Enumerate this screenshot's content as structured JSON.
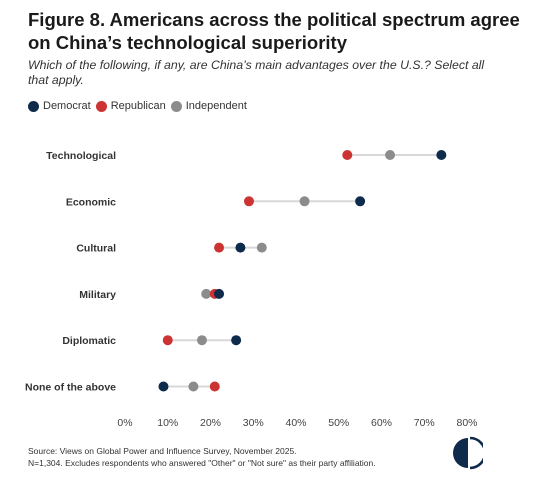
{
  "header": {
    "title": "Figure 8. Americans across the political spectrum agree on China’s technological superiority",
    "subtitle": "Which of the following, if any, are China’s main advantages over the U.S.? Select all that apply."
  },
  "colors": {
    "democrat": "#0f2b4c",
    "republican": "#cc3333",
    "independent": "#8c8c8c",
    "connector": "#d8d8d8"
  },
  "chart_data": {
    "type": "dot",
    "categories": [
      "Technological",
      "Economic",
      "Cultural",
      "Military",
      "Diplomatic",
      "None of the above"
    ],
    "series": [
      {
        "name": "Democrat",
        "values": [
          74,
          55,
          27,
          22,
          26,
          9
        ]
      },
      {
        "name": "Republican",
        "values": [
          52,
          29,
          22,
          21,
          10,
          21
        ]
      },
      {
        "name": "Independent",
        "values": [
          62,
          42,
          32,
          19,
          18,
          16
        ]
      }
    ],
    "xlim": [
      0,
      80
    ],
    "xticks": [
      "0%",
      "10%",
      "20%",
      "30%",
      "40%",
      "50%",
      "60%",
      "70%",
      "80%"
    ],
    "legend_position": "top-left",
    "grid": false
  },
  "footer": {
    "source": "Source: Views on Global Power and Influence Survey, November 2025.",
    "note": "N=1,304. Excludes respondents who answered \"Other\" or \"Not sure\" as their party affiliation."
  },
  "logo": {
    "icon": "half-circle-logo-icon"
  }
}
